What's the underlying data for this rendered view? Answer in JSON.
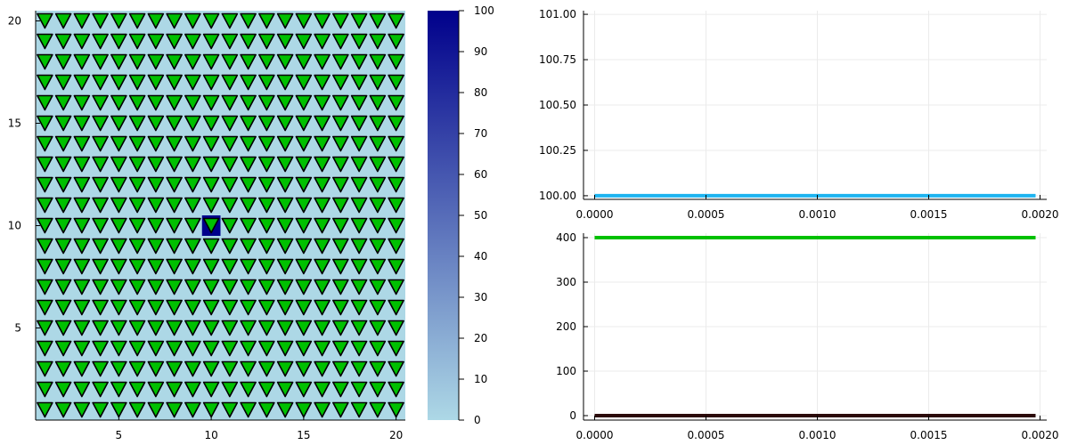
{
  "chart_data": [
    {
      "type": "heatmap",
      "title": "",
      "xlabel": "",
      "ylabel": "",
      "grid_size": [
        20,
        20
      ],
      "xlim": [
        0.5,
        20.5
      ],
      "ylim": [
        0.5,
        20.5
      ],
      "xticks": [
        5,
        10,
        15,
        20
      ],
      "yticks": [
        5,
        10,
        15,
        20
      ],
      "background_value": 0,
      "cells": [
        {
          "x": 10,
          "y": 10,
          "value": 100
        }
      ],
      "markers": {
        "shape": "downward-triangle",
        "color": "#00c000",
        "stroke": "#000000",
        "grid": "every cell 1..20 x 1..20"
      },
      "colorbar": {
        "range": [
          0,
          100
        ],
        "ticks": [
          0,
          10,
          20,
          30,
          40,
          50,
          60,
          70,
          80,
          90,
          100
        ],
        "color_low": "#add8e6",
        "color_high": "#00008b"
      }
    },
    {
      "type": "line",
      "title": "",
      "xlabel": "",
      "ylabel": "",
      "xlim": [
        -5e-05,
        0.00203
      ],
      "ylim": [
        99.98,
        101.02
      ],
      "xticks": [
        "0.0000",
        "0.0005",
        "0.0010",
        "0.0015",
        "0.0020"
      ],
      "yticks": [
        "100.00",
        "100.25",
        "100.50",
        "100.75",
        "101.00"
      ],
      "grid": true,
      "series": [
        {
          "x": [
            0,
            0.00198
          ],
          "values": [
            100,
            100
          ],
          "color": "#1eb4f0"
        }
      ]
    },
    {
      "type": "line",
      "title": "",
      "xlabel": "",
      "ylabel": "",
      "xlim": [
        -5e-05,
        0.00203
      ],
      "ylim": [
        -10,
        410
      ],
      "xticks": [
        "0.0000",
        "0.0005",
        "0.0010",
        "0.0015",
        "0.0020"
      ],
      "yticks": [
        "0",
        "100",
        "200",
        "300",
        "400"
      ],
      "grid": true,
      "series": [
        {
          "x": [
            0,
            0.00198
          ],
          "values": [
            400,
            400
          ],
          "color": "#00c000"
        },
        {
          "x": [
            0,
            0.00198
          ],
          "values": [
            0,
            0
          ],
          "color": "#2b0a0a"
        }
      ]
    }
  ]
}
